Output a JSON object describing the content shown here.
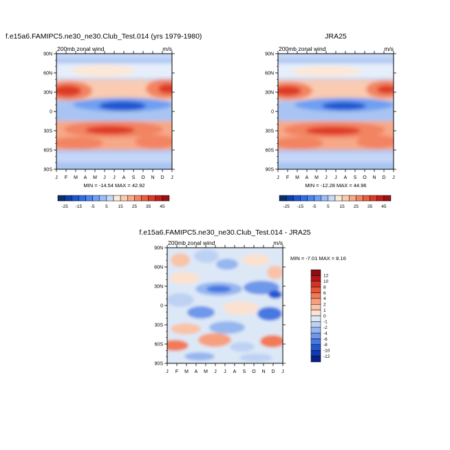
{
  "colors": {
    "background": "#ffffff",
    "frame": "#000000",
    "blue_strong": "#0b2f9e",
    "blue_mid": "#3a6fe0",
    "blue_light": "#a9c4f2",
    "neutral": "#f6ecdf",
    "red_light": "#f7b89a",
    "red_mid": "#f0603c",
    "red_strong": "#b7161b"
  },
  "chart_data": [
    {
      "type": "heatmap",
      "title": "f.e15a6.FAMIPC5.ne30_ne30.Club_Test.014 (yrs 1979-1980)",
      "subtitle_left": "200mb zonal wind",
      "subtitle_right": "m/s",
      "x": [
        "J",
        "F",
        "M",
        "A",
        "M",
        "J",
        "J",
        "A",
        "S",
        "O",
        "N",
        "D",
        "J"
      ],
      "y_tick_labels": [
        "90N",
        "60N",
        "30N",
        "0",
        "30S",
        "60S",
        "90S"
      ],
      "y_tick_values": [
        90,
        60,
        30,
        0,
        -30,
        -60,
        -90
      ],
      "stats": "MIN = -14.54 MAX =  42.92",
      "min": -14.54,
      "max": 42.92
    },
    {
      "type": "heatmap",
      "title": "JRA25",
      "subtitle_left": "200mb zonal wind",
      "subtitle_right": "m/s",
      "x": [
        "J",
        "F",
        "M",
        "A",
        "M",
        "J",
        "J",
        "A",
        "S",
        "O",
        "N",
        "D",
        "J"
      ],
      "y_tick_labels": [
        "90N",
        "60N",
        "30N",
        "0",
        "30S",
        "60S",
        "90S"
      ],
      "y_tick_values": [
        90,
        60,
        30,
        0,
        -30,
        -60,
        -90
      ],
      "stats": "MIN = -12.28 MAX =  44.96",
      "min": -12.28,
      "max": 44.96
    },
    {
      "type": "heatmap",
      "title": "f.e15a6.FAMIPC5.ne30_ne30.Club_Test.014 - JRA25",
      "subtitle_left": "200mb zonal wind",
      "subtitle_right": "m/s",
      "x": [
        "J",
        "F",
        "M",
        "A",
        "M",
        "J",
        "J",
        "A",
        "S",
        "O",
        "N",
        "D",
        "J"
      ],
      "y_tick_labels": [
        "90N",
        "60N",
        "30N",
        "0",
        "30S",
        "60S",
        "90S"
      ],
      "y_tick_values": [
        90,
        60,
        30,
        0,
        -30,
        -60,
        -90
      ],
      "stats": "MIN =  -7.01 MAX =   8.16",
      "min": -7.01,
      "max": 8.16
    }
  ],
  "colorbars": {
    "abs": {
      "labels": [
        "-25",
        "-15",
        "-5",
        "5",
        "15",
        "25",
        "35",
        "45"
      ],
      "levels": [
        -30,
        -25,
        -20,
        -15,
        -10,
        -5,
        0,
        5,
        10,
        15,
        20,
        25,
        30,
        35,
        40,
        45,
        50
      ],
      "colors": [
        "#08306b",
        "#0c3fa8",
        "#1e56d0",
        "#2f6ee6",
        "#4a86f0",
        "#6e9ff2",
        "#9bbcf4",
        "#c6d8f8",
        "#fbe8d8",
        "#f9cbb0",
        "#f6a989",
        "#f28462",
        "#ec5f3e",
        "#de3a27",
        "#c21d1a",
        "#9b1014"
      ]
    },
    "diff": {
      "labels": [
        "12",
        "10",
        "8",
        "6",
        "4",
        "2",
        "1",
        "0",
        "-1",
        "-2",
        "-4",
        "-6",
        "-8",
        "-10",
        "-12"
      ],
      "colors": [
        "#8b0f0f",
        "#b3171b",
        "#d33225",
        "#e8563a",
        "#f27a56",
        "#f6a07f",
        "#f9c3a7",
        "#fbe2d0",
        "#dde8f7",
        "#bdd2f3",
        "#96b6ef",
        "#6e98ea",
        "#4678e2",
        "#2357cf",
        "#123bb0",
        "#0a1f87"
      ]
    }
  }
}
